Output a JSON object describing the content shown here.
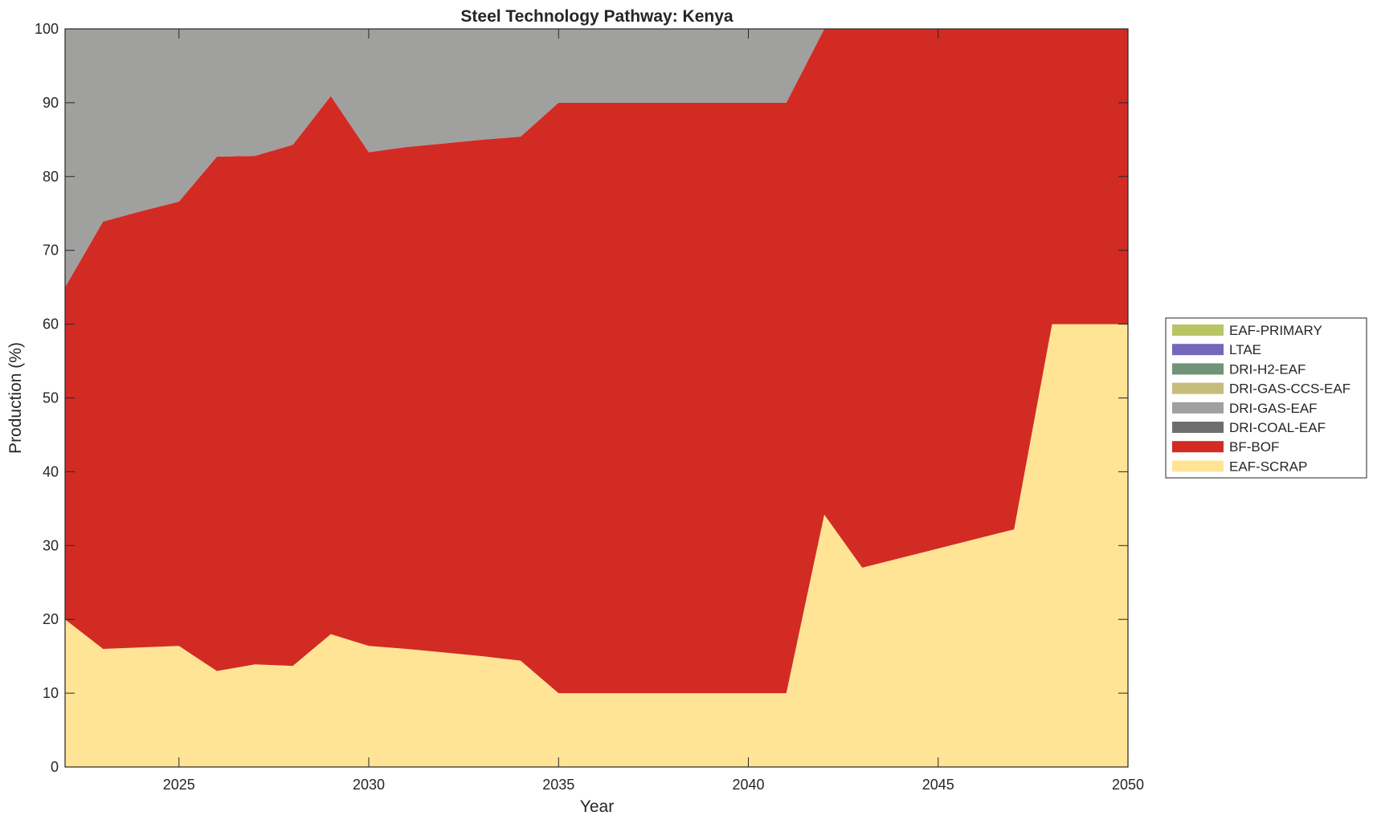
{
  "chart_data": {
    "type": "area",
    "stacked": true,
    "title": "Steel Technology Pathway: Kenya",
    "xlabel": "Year",
    "ylabel": "Production (%)",
    "xlim": [
      2022,
      2050
    ],
    "ylim": [
      0,
      100
    ],
    "xticks": [
      2025,
      2030,
      2035,
      2040,
      2045,
      2050
    ],
    "yticks": [
      0,
      10,
      20,
      30,
      40,
      50,
      60,
      70,
      80,
      90,
      100
    ],
    "grid": false,
    "legend_position": "right",
    "x": [
      2022,
      2023,
      2024,
      2025,
      2026,
      2027,
      2028,
      2029,
      2030,
      2031,
      2032,
      2033,
      2034,
      2035,
      2036,
      2037,
      2038,
      2039,
      2040,
      2041,
      2042,
      2043,
      2044,
      2045,
      2046,
      2047,
      2048,
      2049,
      2050
    ],
    "series": [
      {
        "name": "EAF-SCRAP",
        "color": "#ffe496",
        "values": [
          20,
          16,
          16.2,
          16.4,
          13,
          13.9,
          13.7,
          18,
          16.4,
          16,
          15.5,
          15,
          14.4,
          10,
          10,
          10,
          10,
          10,
          10,
          10,
          34.2,
          27,
          28.3,
          29.6,
          30.9,
          32.2,
          60,
          60,
          60
        ]
      },
      {
        "name": "BF-BOF",
        "color": "#d22b24",
        "values": [
          45,
          57.9,
          59.1,
          60.2,
          69.7,
          68.9,
          70.6,
          72.9,
          66.9,
          68,
          69,
          70,
          71,
          80,
          80,
          80,
          80,
          80,
          80,
          80,
          65.8,
          73,
          71.7,
          70.4,
          69.1,
          67.8,
          40,
          40,
          40
        ]
      },
      {
        "name": "DRI-COAL-EAF",
        "color": "#6e6e6e",
        "values": [
          0,
          0,
          0,
          0,
          0,
          0,
          0,
          0,
          0,
          0,
          0,
          0,
          0,
          0,
          0,
          0,
          0,
          0,
          0,
          0,
          0,
          0,
          0,
          0,
          0,
          0,
          0,
          0,
          0
        ]
      },
      {
        "name": "DRI-GAS-EAF",
        "color": "#a0a09e",
        "values": [
          35,
          26.1,
          24.7,
          23.4,
          17.3,
          17.2,
          15.7,
          9.1,
          16.7,
          16,
          15.5,
          15,
          14.6,
          10,
          10,
          10,
          10,
          10,
          10,
          10,
          0,
          0,
          0,
          0,
          0,
          0,
          0,
          0,
          0
        ]
      },
      {
        "name": "DRI-GAS-CCS-EAF",
        "color": "#c4bd7c",
        "values": [
          0,
          0,
          0,
          0,
          0,
          0,
          0,
          0,
          0,
          0,
          0,
          0,
          0,
          0,
          0,
          0,
          0,
          0,
          0,
          0,
          0,
          0,
          0,
          0,
          0,
          0,
          0,
          0,
          0
        ]
      },
      {
        "name": "DRI-H2-EAF",
        "color": "#6f9477",
        "values": [
          0,
          0,
          0,
          0,
          0,
          0,
          0,
          0,
          0,
          0,
          0,
          0,
          0,
          0,
          0,
          0,
          0,
          0,
          0,
          0,
          0,
          0,
          0,
          0,
          0,
          0,
          0,
          0,
          0
        ]
      },
      {
        "name": "LTAE",
        "color": "#7467bb",
        "values": [
          0,
          0,
          0,
          0,
          0,
          0,
          0,
          0,
          0,
          0,
          0,
          0,
          0,
          0,
          0,
          0,
          0,
          0,
          0,
          0,
          0,
          0,
          0,
          0,
          0,
          0,
          0,
          0,
          0
        ]
      },
      {
        "name": "EAF-PRIMARY",
        "color": "#b9c465",
        "values": [
          0,
          0,
          0,
          0,
          0,
          0,
          0,
          0,
          0,
          0,
          0,
          0,
          0,
          0,
          0,
          0,
          0,
          0,
          0,
          0,
          0,
          0,
          0,
          0,
          0,
          0,
          0,
          0,
          0
        ]
      }
    ],
    "legend_order": [
      "EAF-PRIMARY",
      "LTAE",
      "DRI-H2-EAF",
      "DRI-GAS-CCS-EAF",
      "DRI-GAS-EAF",
      "DRI-COAL-EAF",
      "BF-BOF",
      "EAF-SCRAP"
    ]
  }
}
